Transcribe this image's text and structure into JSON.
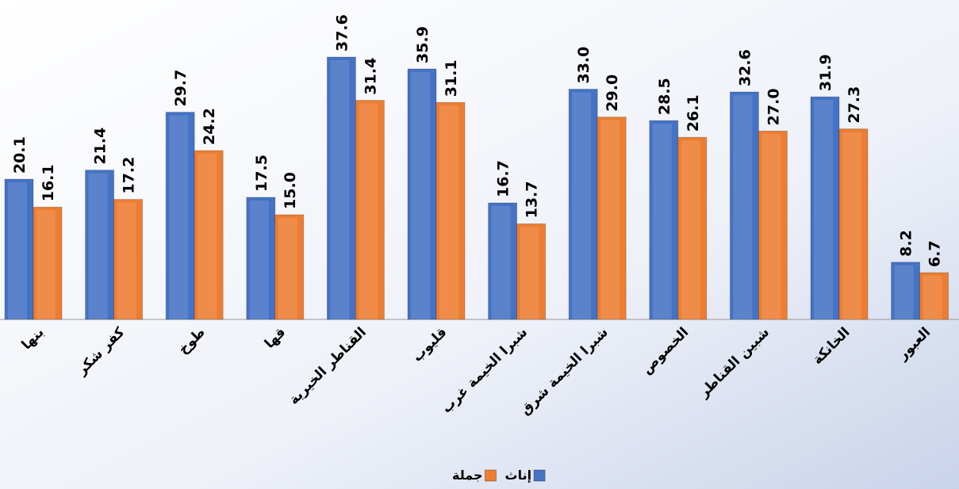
{
  "chart_data": {
    "type": "bar",
    "categories": [
      "بنها",
      "كفر شكر",
      "طوخ",
      "قها",
      "القناطر الخيرية",
      "قليوب",
      "شبرا الخيمة غرب",
      "شبرا الخيمة شرق",
      "الخصوص",
      "شبين القناطر",
      "الخانكة",
      "العبور"
    ],
    "series": [
      {
        "name": "إناث",
        "color": "#4472c4",
        "values": [
          20.1,
          21.4,
          29.7,
          17.5,
          37.6,
          35.9,
          16.7,
          33.0,
          28.5,
          32.6,
          31.9,
          8.2
        ],
        "value_labels": [
          "20.1",
          "21.4",
          "29.7",
          "17.5",
          "37.6",
          "35.9",
          "16.7",
          "33.0",
          "28.5",
          "32.6",
          "31.9",
          "8.2"
        ]
      },
      {
        "name": "جملة",
        "color": "#ed7d31",
        "values": [
          16.1,
          17.2,
          24.2,
          15.0,
          31.4,
          31.1,
          13.7,
          29.0,
          26.1,
          27.0,
          27.3,
          6.7
        ],
        "value_labels": [
          "16.1",
          "17.2",
          "24.2",
          "15.0",
          "31.4",
          "31.1",
          "13.7",
          "29.0",
          "26.1",
          "27.0",
          "27.3",
          "6.7"
        ]
      }
    ]
  }
}
